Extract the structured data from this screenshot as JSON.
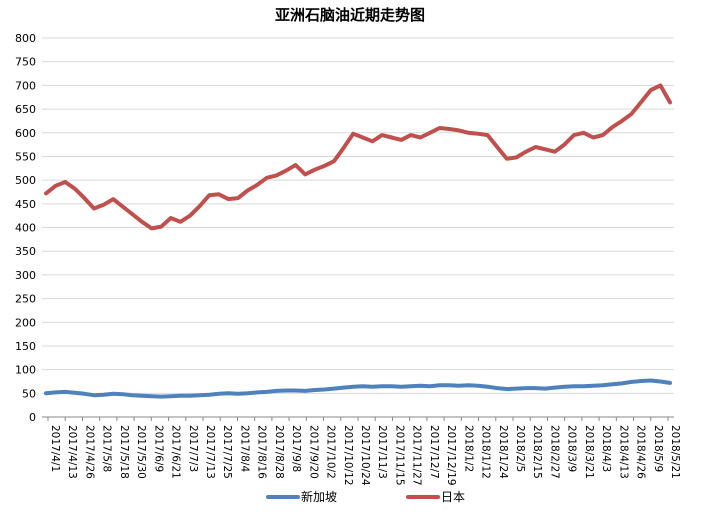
{
  "chart_data": {
    "type": "line",
    "title": "亚洲石脑油近期走势图",
    "xlabel": "",
    "ylabel": "",
    "ylim": [
      0,
      800
    ],
    "y_ticks": [
      0,
      50,
      100,
      150,
      200,
      250,
      300,
      350,
      400,
      450,
      500,
      550,
      600,
      650,
      700,
      750,
      800
    ],
    "grid": true,
    "legend_position": "bottom",
    "x_tick_labels": [
      "2017/4/1",
      "2017/4/13",
      "2017/4/26",
      "2017/5/8",
      "2017/5/18",
      "2017/5/30",
      "2017/6/9",
      "2017/6/21",
      "2017/7/3",
      "2017/7/13",
      "2017/7/25",
      "2017/8/4",
      "2017/8/16",
      "2017/8/28",
      "2017/9/8",
      "2017/9/20",
      "2017/10/2",
      "2017/10/12",
      "2017/10/24",
      "2017/11/3",
      "2017/11/15",
      "2017/11/27",
      "2017/12/7",
      "2017/12/19",
      "2018/1/2",
      "2018/1/12",
      "2018/1/24",
      "2018/2/5",
      "2018/2/15",
      "2018/2/27",
      "2018/3/9",
      "2018/3/21",
      "2018/4/3",
      "2018/4/13",
      "2018/4/26",
      "2018/5/9",
      "2018/5/21"
    ],
    "series": [
      {
        "name": "新加坡",
        "color": "#4f81bd",
        "points": [
          [
            0,
            50
          ],
          [
            1,
            52
          ],
          [
            2,
            53
          ],
          [
            3,
            51
          ],
          [
            4,
            49
          ],
          [
            5,
            46
          ],
          [
            6,
            47
          ],
          [
            7,
            49
          ],
          [
            8,
            48
          ],
          [
            9,
            46
          ],
          [
            10,
            45
          ],
          [
            11,
            44
          ],
          [
            12,
            43
          ],
          [
            13,
            44
          ],
          [
            14,
            45
          ],
          [
            15,
            45
          ],
          [
            16,
            46
          ],
          [
            17,
            47
          ],
          [
            18,
            49
          ],
          [
            19,
            50
          ],
          [
            20,
            49
          ],
          [
            21,
            50
          ],
          [
            22,
            52
          ],
          [
            23,
            53
          ],
          [
            24,
            55
          ],
          [
            25,
            56
          ],
          [
            26,
            56
          ],
          [
            27,
            55
          ],
          [
            28,
            57
          ],
          [
            29,
            58
          ],
          [
            30,
            60
          ],
          [
            31,
            62
          ],
          [
            32,
            64
          ],
          [
            33,
            65
          ],
          [
            34,
            64
          ],
          [
            35,
            65
          ],
          [
            36,
            65
          ],
          [
            37,
            64
          ],
          [
            38,
            65
          ],
          [
            39,
            66
          ],
          [
            40,
            65
          ],
          [
            41,
            67
          ],
          [
            42,
            67
          ],
          [
            43,
            66
          ],
          [
            44,
            67
          ],
          [
            45,
            66
          ],
          [
            46,
            64
          ],
          [
            47,
            61
          ],
          [
            48,
            59
          ],
          [
            49,
            60
          ],
          [
            50,
            61
          ],
          [
            51,
            61
          ],
          [
            52,
            60
          ],
          [
            53,
            62
          ],
          [
            54,
            64
          ],
          [
            55,
            65
          ],
          [
            56,
            65
          ],
          [
            57,
            66
          ],
          [
            58,
            67
          ],
          [
            59,
            69
          ],
          [
            60,
            71
          ],
          [
            61,
            74
          ],
          [
            62,
            76
          ],
          [
            63,
            77
          ],
          [
            64,
            75
          ],
          [
            65,
            72
          ]
        ]
      },
      {
        "name": "日本",
        "color": "#c0504d",
        "points": [
          [
            0,
            472
          ],
          [
            1,
            488
          ],
          [
            2,
            496
          ],
          [
            3,
            482
          ],
          [
            4,
            462
          ],
          [
            5,
            440
          ],
          [
            6,
            448
          ],
          [
            7,
            460
          ],
          [
            8,
            444
          ],
          [
            9,
            428
          ],
          [
            10,
            412
          ],
          [
            11,
            398
          ],
          [
            12,
            402
          ],
          [
            13,
            420
          ],
          [
            14,
            412
          ],
          [
            15,
            425
          ],
          [
            16,
            445
          ],
          [
            17,
            468
          ],
          [
            18,
            470
          ],
          [
            19,
            460
          ],
          [
            20,
            462
          ],
          [
            21,
            478
          ],
          [
            22,
            490
          ],
          [
            23,
            505
          ],
          [
            24,
            510
          ],
          [
            25,
            520
          ],
          [
            26,
            532
          ],
          [
            27,
            512
          ],
          [
            28,
            522
          ],
          [
            29,
            530
          ],
          [
            30,
            540
          ],
          [
            31,
            568
          ],
          [
            32,
            598
          ],
          [
            33,
            590
          ],
          [
            34,
            582
          ],
          [
            35,
            595
          ],
          [
            36,
            590
          ],
          [
            37,
            585
          ],
          [
            38,
            595
          ],
          [
            39,
            590
          ],
          [
            40,
            600
          ],
          [
            41,
            610
          ],
          [
            42,
            608
          ],
          [
            43,
            605
          ],
          [
            44,
            600
          ],
          [
            45,
            598
          ],
          [
            46,
            595
          ],
          [
            47,
            570
          ],
          [
            48,
            545
          ],
          [
            49,
            548
          ],
          [
            50,
            560
          ],
          [
            51,
            570
          ],
          [
            52,
            565
          ],
          [
            53,
            560
          ],
          [
            54,
            575
          ],
          [
            55,
            595
          ],
          [
            56,
            600
          ],
          [
            57,
            590
          ],
          [
            58,
            595
          ],
          [
            59,
            612
          ],
          [
            60,
            625
          ],
          [
            61,
            640
          ],
          [
            62,
            665
          ],
          [
            63,
            690
          ],
          [
            64,
            700
          ],
          [
            65,
            664
          ]
        ]
      }
    ]
  }
}
